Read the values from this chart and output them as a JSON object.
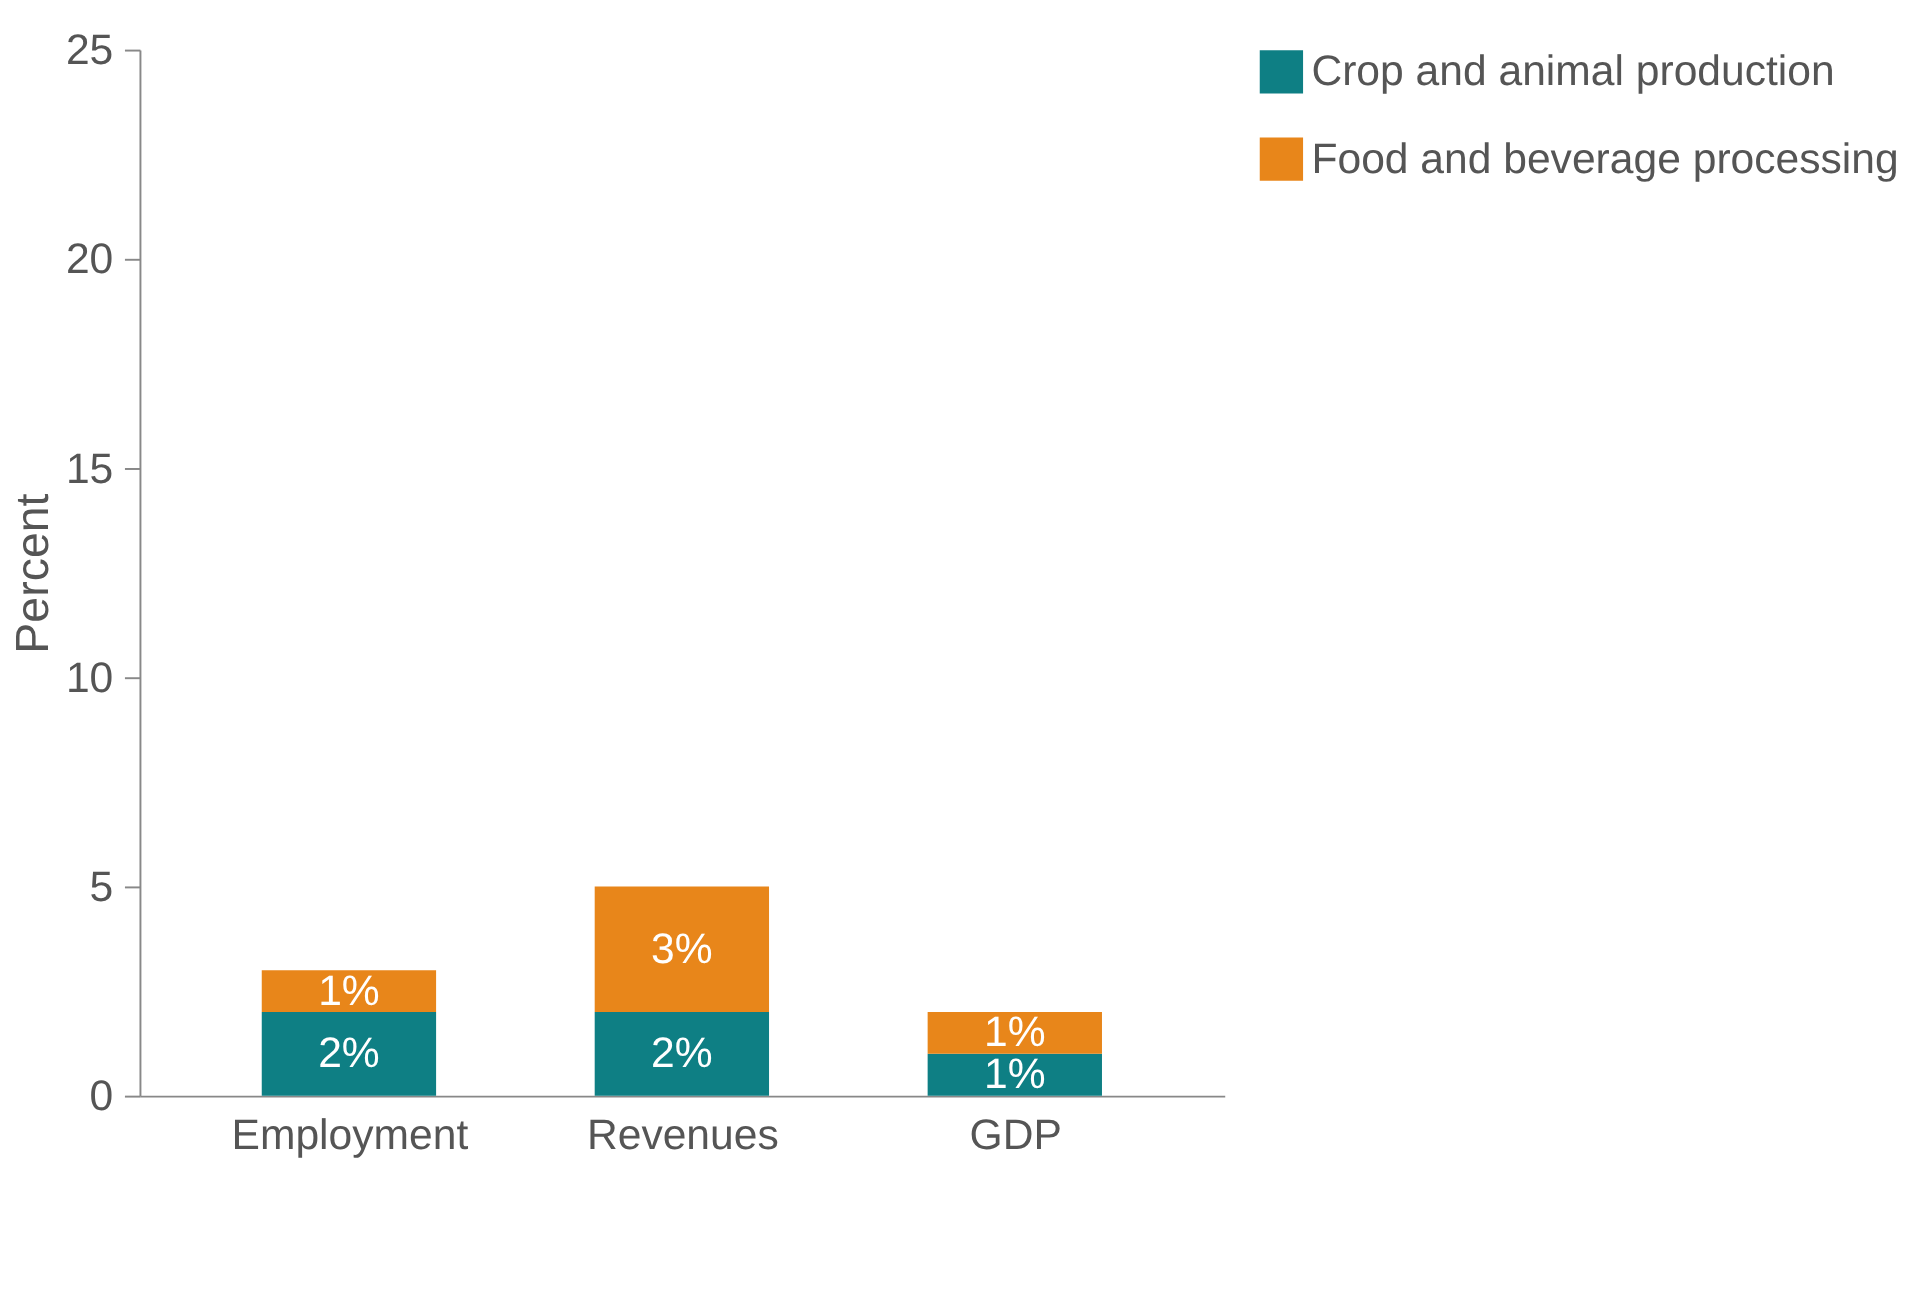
{
  "chart_data": {
    "type": "bar",
    "stacked": true,
    "ylabel": "Percent",
    "categories": [
      "Employment",
      "Revenues",
      "GDP"
    ],
    "series": [
      {
        "name": "Crop and animal production",
        "color": "#0e7f84",
        "values": [
          2,
          2,
          1
        ],
        "value_labels": [
          "2%",
          "2%",
          "1%"
        ]
      },
      {
        "name": "Food and beverage processing",
        "color": "#e8861a",
        "values": [
          1,
          3,
          1
        ],
        "value_labels": [
          "1%",
          "3%",
          "1%"
        ]
      }
    ],
    "ylim": [
      0,
      25
    ],
    "yticks": [
      0,
      5,
      10,
      15,
      20,
      25
    ],
    "grid": false,
    "legend": "top right"
  }
}
